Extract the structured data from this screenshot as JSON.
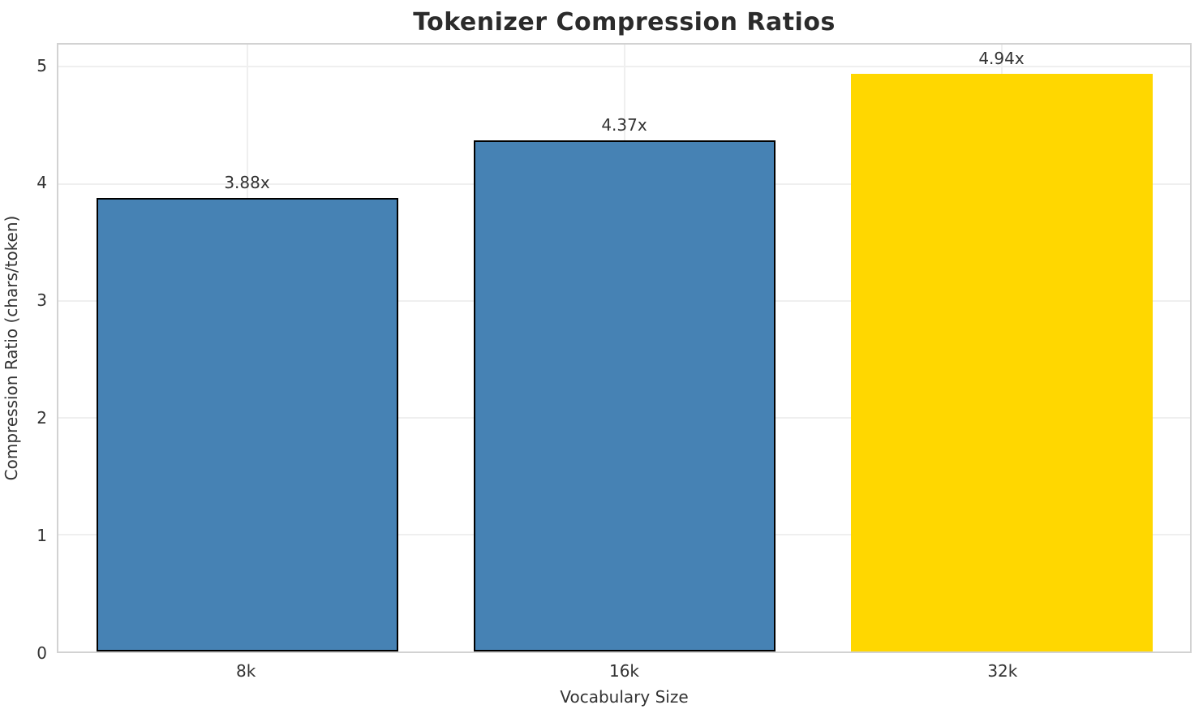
{
  "chart_data": {
    "type": "bar",
    "title": "Tokenizer Compression Ratios",
    "xlabel": "Vocabulary Size",
    "ylabel": "Compression Ratio (chars/token)",
    "categories": [
      "8k",
      "16k",
      "32k"
    ],
    "values": [
      3.88,
      4.37,
      4.94
    ],
    "bar_labels": [
      "3.88x",
      "4.37x",
      "4.94x"
    ],
    "bar_colors": [
      "#4682B4",
      "#4682B4",
      "#FFD700"
    ],
    "bar_edge_colors": [
      "#000000",
      "#000000",
      "none"
    ],
    "bar_width_fraction": 0.8,
    "ylim": [
      0,
      5.19
    ],
    "yticks": [
      0,
      1,
      2,
      3,
      4,
      5
    ],
    "grid": true,
    "legend": "none",
    "style": {
      "background_color": "#ffffff",
      "grid_color": "#efefef",
      "spine_color": "#d2d2d2",
      "title_color": "#2b2b2b",
      "tick_label_color": "#333333"
    }
  }
}
